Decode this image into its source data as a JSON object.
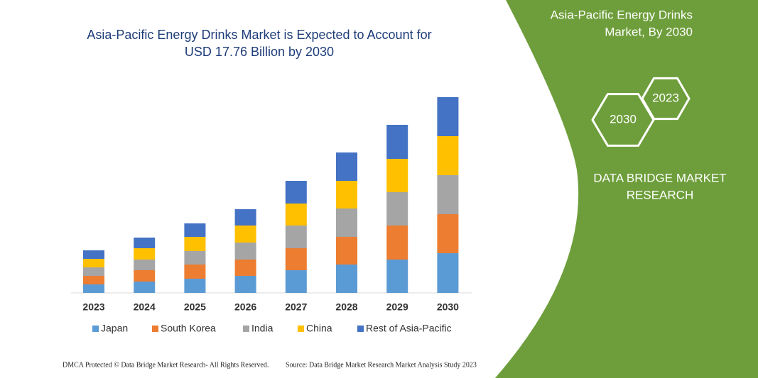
{
  "chart_data": {
    "type": "stacked-bar",
    "title": "Asia-Pacific Energy Drinks Market is Expected to Account for USD 17.76 Billion by 2030",
    "categories": [
      "2023",
      "2024",
      "2025",
      "2026",
      "2027",
      "2028",
      "2029",
      "2030"
    ],
    "series": [
      {
        "name": "Japan",
        "color": "#5b9bd5",
        "values": [
          12,
          16,
          20,
          24,
          32,
          40,
          47,
          56
        ]
      },
      {
        "name": "South Korea",
        "color": "#ed7d31",
        "values": [
          12,
          16,
          20,
          23,
          31,
          39,
          48,
          55
        ]
      },
      {
        "name": "India",
        "color": "#a5a5a5",
        "values": [
          12,
          15,
          19,
          24,
          32,
          40,
          47,
          55
        ]
      },
      {
        "name": "China",
        "color": "#ffc000",
        "values": [
          12,
          16,
          20,
          24,
          31,
          39,
          47,
          55
        ]
      },
      {
        "name": "Rest of Asia-Pacific",
        "color": "#4472c4",
        "values": [
          12,
          15,
          19,
          23,
          32,
          40,
          48,
          55
        ]
      }
    ]
  },
  "panel": {
    "title_line1": "Asia-Pacific Energy Drinks",
    "title_line2": "Market, By 2030",
    "hex_small": "2023",
    "hex_large": "2030",
    "brand_line1": "DATA BRIDGE MARKET",
    "brand_line2": "RESEARCH"
  },
  "footer": {
    "left": "DMCA Protected © Data Bridge Market Research-  All Rights Reserved.",
    "right": "Source: Data Bridge Market Research  Market Analysis Study 2023"
  }
}
